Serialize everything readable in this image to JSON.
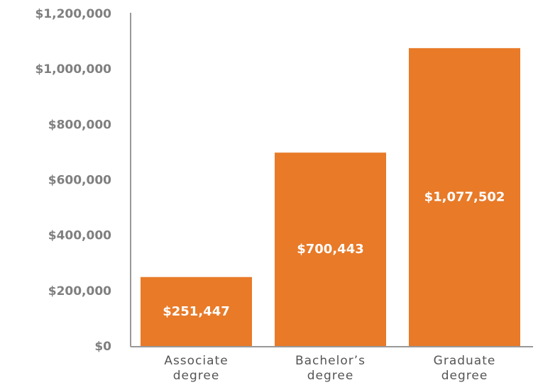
{
  "chart_data": {
    "type": "bar",
    "categories": [
      "Associate degree",
      "Bachelor’s degree",
      "Graduate degree"
    ],
    "values": [
      251447,
      700443,
      1077502
    ],
    "value_labels": [
      "$251,447",
      "$700,443",
      "$1,077,502"
    ],
    "color": "#e87a28",
    "ylim": [
      0,
      1200000
    ],
    "yticks": [
      {
        "value": 0,
        "label": "$0"
      },
      {
        "value": 200000,
        "label": "$200,000"
      },
      {
        "value": 400000,
        "label": "$400,000"
      },
      {
        "value": 600000,
        "label": "$600,000"
      },
      {
        "value": 800000,
        "label": "$800,000"
      },
      {
        "value": 1000000,
        "label": "$1,000,000"
      },
      {
        "value": 1200000,
        "label": "$1,200,000"
      }
    ],
    "grid": false
  }
}
